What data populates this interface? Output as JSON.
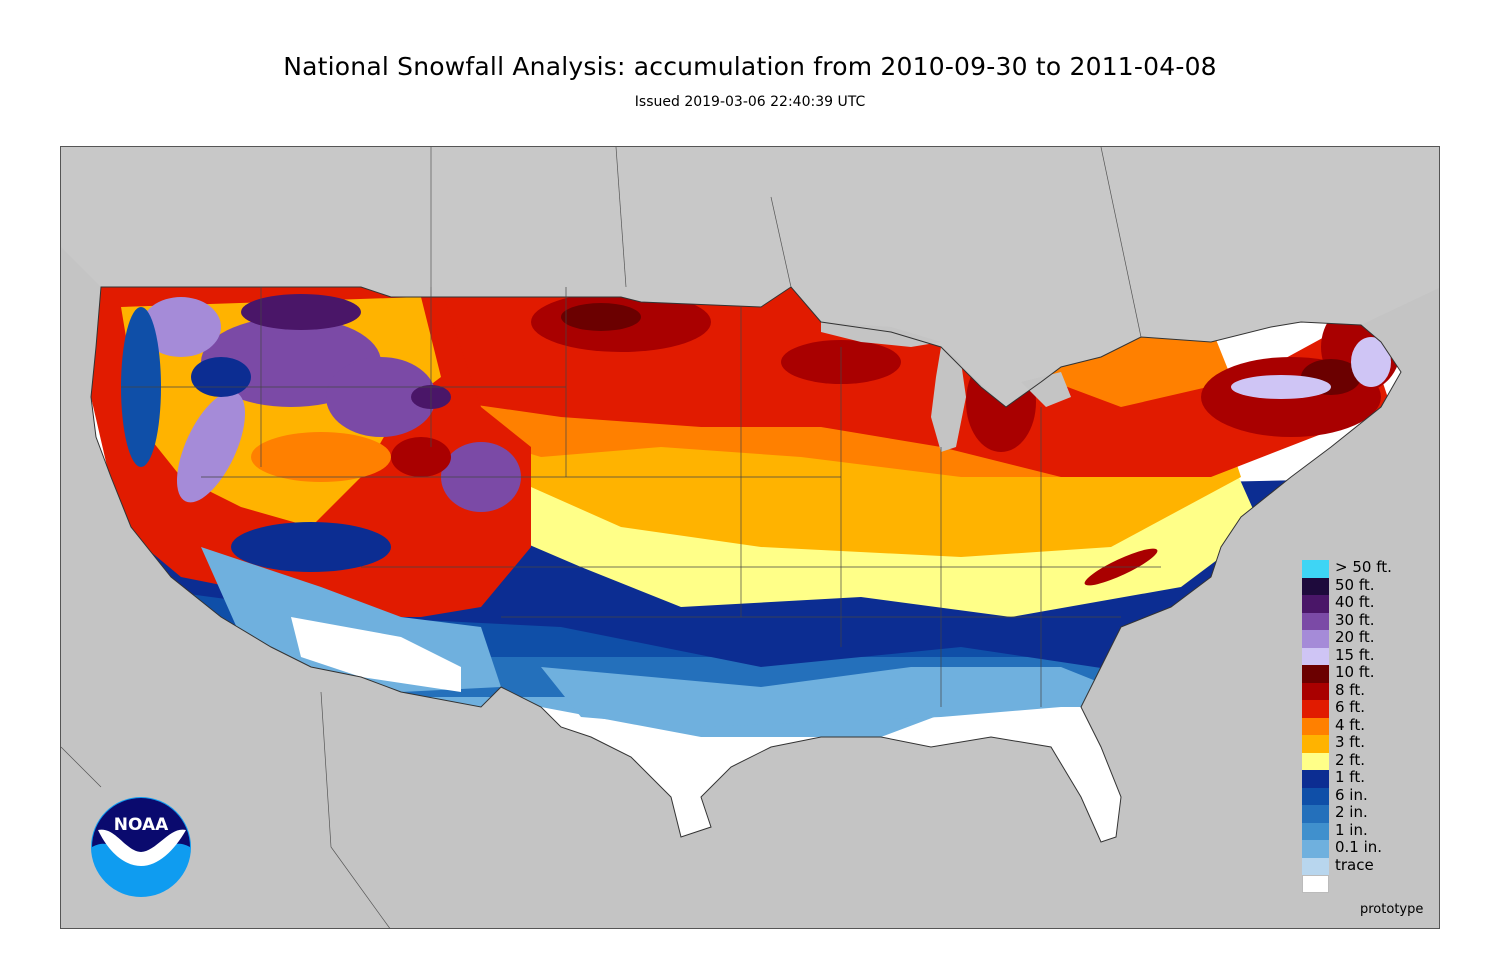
{
  "header": {
    "title": "National Snowfall Analysis: accumulation from 2010-09-30 to 2011-04-08",
    "issued": "Issued 2019-03-06 22:40:39 UTC"
  },
  "map": {
    "background_color": "#c4c4c4",
    "land_outline_color": "#333333"
  },
  "logo": {
    "text": "NOAA",
    "icon": "noaa-logo-icon",
    "colors": {
      "dark": "#0a0a6e",
      "light": "#0f9cf0"
    }
  },
  "legend": {
    "items": [
      {
        "label": "> 50 ft.",
        "color": "#3ed5f5"
      },
      {
        "label": "50 ft.",
        "color": "#1e0a3c"
      },
      {
        "label": "40 ft.",
        "color": "#4a1668"
      },
      {
        "label": "30 ft.",
        "color": "#7b4aa6"
      },
      {
        "label": "20 ft.",
        "color": "#a58bd8"
      },
      {
        "label": "15 ft.",
        "color": "#cfc5f5"
      },
      {
        "label": "10 ft.",
        "color": "#6b0000"
      },
      {
        "label": "8 ft.",
        "color": "#a90000"
      },
      {
        "label": "6 ft.",
        "color": "#e11b00"
      },
      {
        "label": "4 ft.",
        "color": "#ff8000"
      },
      {
        "label": "3 ft.",
        "color": "#ffb300"
      },
      {
        "label": "2 ft.",
        "color": "#ffff88"
      },
      {
        "label": "1 ft.",
        "color": "#0c2d92"
      },
      {
        "label": "6 in.",
        "color": "#0f4fa8"
      },
      {
        "label": "2 in.",
        "color": "#2470bb"
      },
      {
        "label": "1 in.",
        "color": "#4090cd"
      },
      {
        "label": "0.1 in.",
        "color": "#6fb0de"
      },
      {
        "label": "trace",
        "color": "#b8d6ee"
      },
      {
        "label": "",
        "color": "#ffffff"
      }
    ]
  },
  "footer": {
    "note": "prototype"
  }
}
